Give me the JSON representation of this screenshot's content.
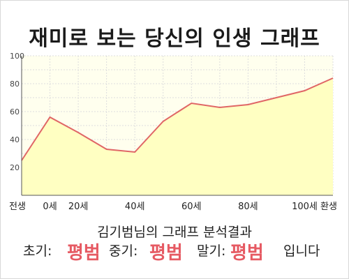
{
  "chart_data": {
    "type": "area",
    "title": "재미로 보는 당신의 인생 그래프",
    "x_labels": [
      "전생",
      "0세",
      "20세",
      "40세",
      "60세",
      "80세",
      "100세",
      "환생"
    ],
    "points": [
      {
        "x": "전생",
        "y": 25
      },
      {
        "x": "0세",
        "y": 56
      },
      {
        "x": "20세",
        "y": 45
      },
      {
        "x": "30세",
        "y": 33
      },
      {
        "x": "40세",
        "y": 31
      },
      {
        "x": "50세",
        "y": 53
      },
      {
        "x": "60세",
        "y": 66
      },
      {
        "x": "70세",
        "y": 63
      },
      {
        "x": "80세",
        "y": 65
      },
      {
        "x": "90세",
        "y": 70
      },
      {
        "x": "100세",
        "y": 75
      },
      {
        "x": "환생",
        "y": 84
      }
    ],
    "yticks": [
      20,
      40,
      60,
      80,
      100
    ],
    "ylim": [
      0,
      100
    ],
    "grid": true,
    "line_color": "#e06666",
    "fill_color": "#ffffc2"
  },
  "summary": {
    "heading": "김기범님의 그래프 분석결과",
    "early_label": "초기:",
    "early_value": "평범",
    "middle_label": "중기:",
    "middle_value": "평범",
    "late_label": "말기:",
    "late_value": "평범",
    "ending": "입니다"
  }
}
